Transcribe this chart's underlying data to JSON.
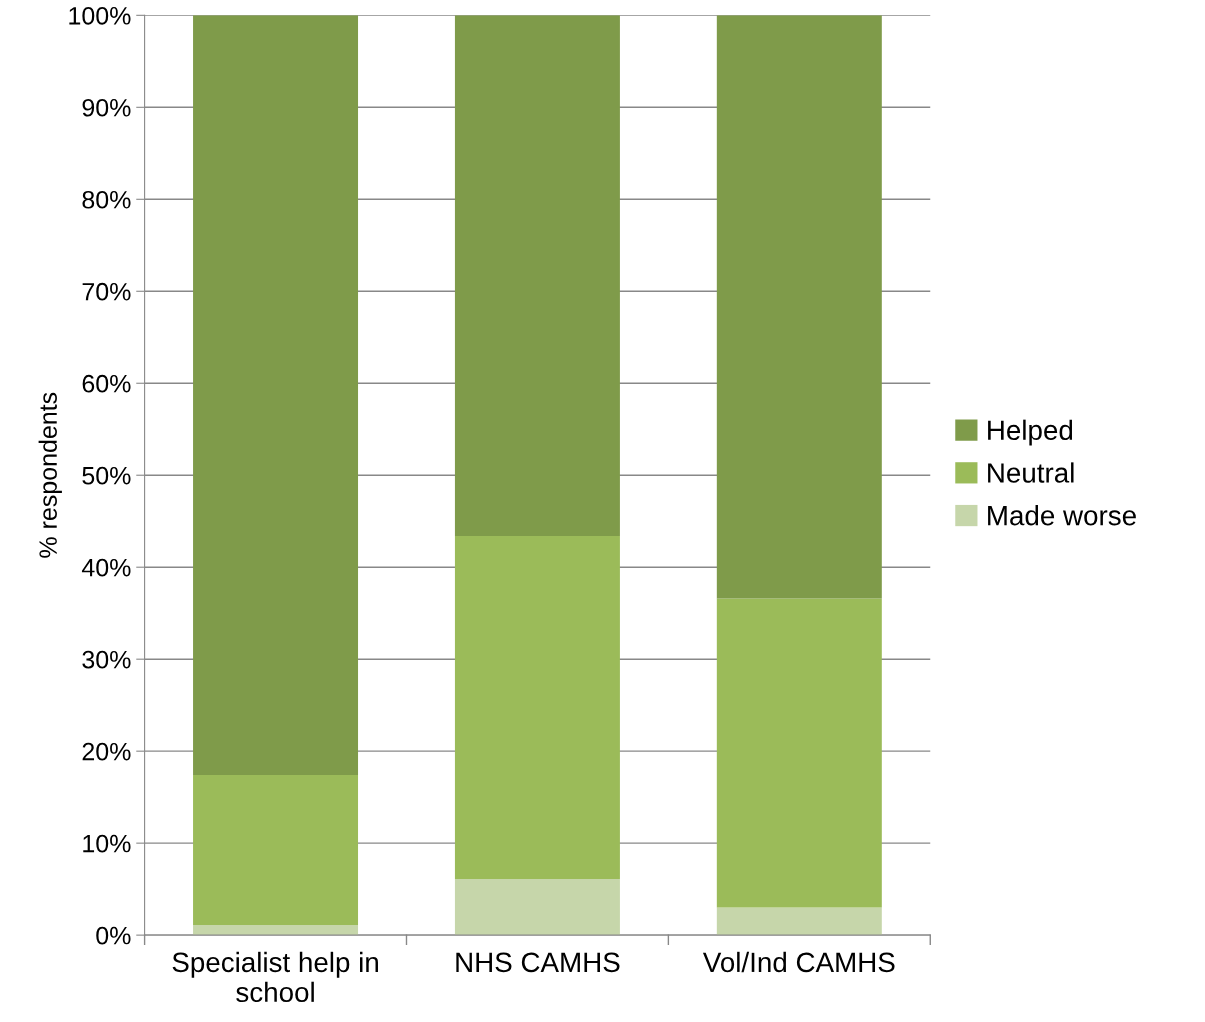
{
  "chart_data": {
    "type": "bar",
    "stacked": true,
    "ylabel": "% respondents",
    "categories": [
      "Specialist help in\nschool",
      "NHS CAMHS",
      "Vol/Ind CAMHS"
    ],
    "series": [
      {
        "name": "Made worse",
        "color": "#c6d6aa",
        "values": [
          1.1,
          6.1,
          3.0
        ]
      },
      {
        "name": "Neutral",
        "color": "#9bbb59",
        "values": [
          16.3,
          37.3,
          33.6
        ]
      },
      {
        "name": "Helped",
        "color": "#7f9b4a",
        "values": [
          82.6,
          56.6,
          63.4
        ]
      }
    ],
    "ylim": [
      0,
      100
    ],
    "yticks": [
      {
        "value": 0,
        "label": "0%"
      },
      {
        "value": 10,
        "label": "10%"
      },
      {
        "value": 20,
        "label": "20%"
      },
      {
        "value": 30,
        "label": "30%"
      },
      {
        "value": 40,
        "label": "40%"
      },
      {
        "value": 50,
        "label": "50%"
      },
      {
        "value": 60,
        "label": "60%"
      },
      {
        "value": 70,
        "label": "70%"
      },
      {
        "value": 80,
        "label": "80%"
      },
      {
        "value": 90,
        "label": "90%"
      },
      {
        "value": 100,
        "label": "100%"
      }
    ],
    "grid": "y",
    "legend": "right"
  }
}
